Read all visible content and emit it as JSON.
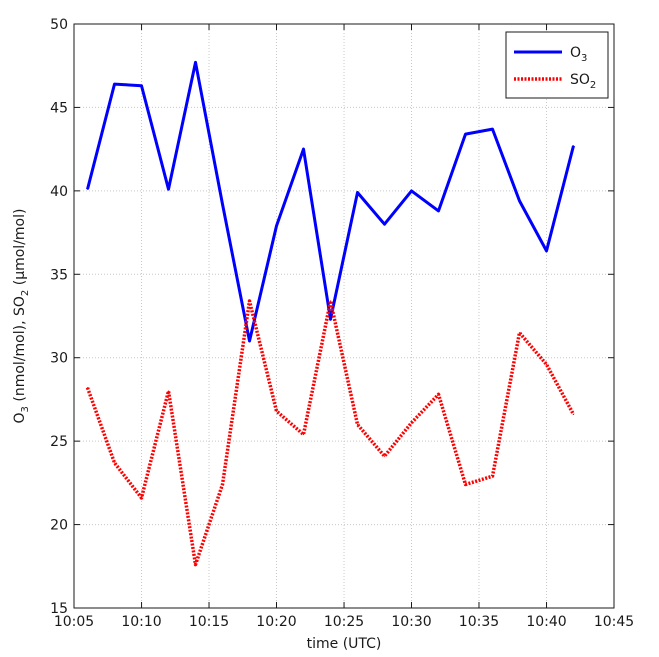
{
  "chart_data": {
    "type": "line",
    "xlabel": "time (UTC)",
    "ylabel": {
      "parts": [
        "O",
        "3",
        " (nmol/mol), SO",
        "2",
        " (µmol/mol)"
      ]
    },
    "xlim": [
      10.0833,
      10.75
    ],
    "ylim": [
      15,
      50
    ],
    "x_ticks": [
      {
        "value": 10.0833,
        "label": "10:05"
      },
      {
        "value": 10.1667,
        "label": "10:10"
      },
      {
        "value": 10.25,
        "label": "10:15"
      },
      {
        "value": 10.3333,
        "label": "10:20"
      },
      {
        "value": 10.4167,
        "label": "10:25"
      },
      {
        "value": 10.5,
        "label": "10:30"
      },
      {
        "value": 10.5833,
        "label": "10:35"
      },
      {
        "value": 10.6667,
        "label": "10:40"
      },
      {
        "value": 10.75,
        "label": "10:45"
      }
    ],
    "y_ticks": [
      15,
      20,
      25,
      30,
      35,
      40,
      45,
      50
    ],
    "grid": true,
    "legend_position": "top-right",
    "x": [
      "10:06",
      "10:08",
      "10:10",
      "10:12",
      "10:14",
      "10:16",
      "10:18",
      "10:20",
      "10:22",
      "10:24",
      "10:26",
      "10:28",
      "10:30",
      "10:32",
      "10:34",
      "10:36",
      "10:38",
      "10:40",
      "10:42"
    ],
    "series": [
      {
        "name": {
          "base": "O",
          "sub": "3"
        },
        "color": "#0000ff",
        "style": "solid",
        "values": [
          40.1,
          46.4,
          46.3,
          40.1,
          47.7,
          39.2,
          31.0,
          37.9,
          42.5,
          32.3,
          39.9,
          38.0,
          40.0,
          38.8,
          43.4,
          43.7,
          39.4,
          36.4,
          42.7
        ]
      },
      {
        "name": {
          "base": "SO",
          "sub": "2"
        },
        "color": "#ff0000",
        "style": "dotted",
        "values": [
          28.2,
          23.7,
          21.6,
          28.0,
          17.6,
          22.4,
          33.4,
          26.8,
          25.4,
          33.4,
          26.0,
          24.1,
          26.1,
          27.8,
          22.4,
          22.9,
          31.5,
          29.6,
          26.6
        ]
      }
    ]
  }
}
